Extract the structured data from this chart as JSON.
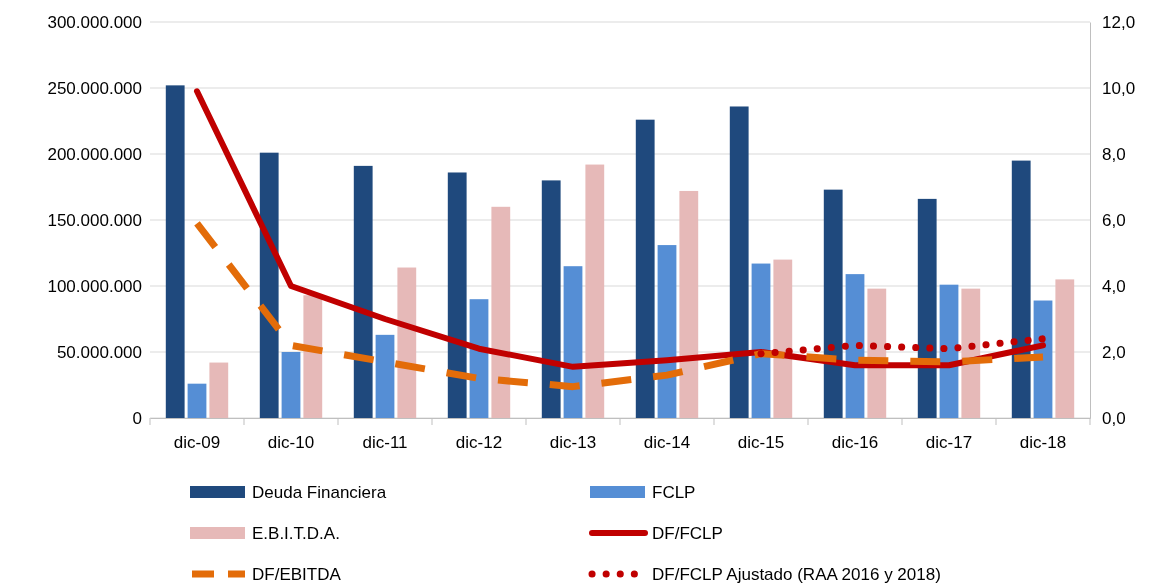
{
  "chart_data": {
    "type": "bar",
    "categories": [
      "dic-09",
      "dic-10",
      "dic-11",
      "dic-12",
      "dic-13",
      "dic-14",
      "dic-15",
      "dic-16",
      "dic-17",
      "dic-18"
    ],
    "series": [
      {
        "name": "Deuda Financiera",
        "color": "#1f497d",
        "values": [
          252000000,
          201000000,
          191000000,
          186000000,
          180000000,
          226000000,
          236000000,
          173000000,
          166000000,
          195000000
        ]
      },
      {
        "name": "FCLP",
        "color": "#558ed5",
        "values": [
          26000000,
          50000000,
          63000000,
          90000000,
          115000000,
          131000000,
          117000000,
          109000000,
          101000000,
          89000000
        ]
      },
      {
        "name": "E.B.I.T.D.A.",
        "color": "#e6b9b8",
        "values": [
          42000000,
          93000000,
          114000000,
          160000000,
          192000000,
          172000000,
          120000000,
          98000000,
          98000000,
          105000000
        ]
      },
      {
        "name": "DF/FCLP",
        "type": "line",
        "axis": "y2",
        "color": "#c00000",
        "line_style": "solid",
        "values": [
          9.9,
          4.0,
          3.0,
          2.1,
          1.55,
          1.75,
          2.0,
          1.6,
          1.6,
          2.2
        ]
      },
      {
        "name": "DF/EBITDA",
        "type": "line",
        "axis": "y2",
        "color": "#e36c09",
        "line_style": "dashed",
        "values": [
          5.9,
          2.2,
          1.7,
          1.2,
          0.95,
          1.3,
          1.95,
          1.75,
          1.7,
          1.85
        ]
      },
      {
        "name": "DF/FCLP Ajustado (RAA 2016 y 2018)",
        "type": "line",
        "axis": "y2",
        "color": "#c00000",
        "line_style": "dotted",
        "values": [
          null,
          null,
          null,
          null,
          null,
          null,
          1.95,
          2.2,
          2.1,
          2.4
        ]
      }
    ],
    "ylim": [
      0,
      300000000
    ],
    "yticks": [
      {
        "value": 0,
        "label": "0"
      },
      {
        "value": 50000000,
        "label": "50.000.000"
      },
      {
        "value": 100000000,
        "label": "100.000.000"
      },
      {
        "value": 150000000,
        "label": "150.000.000"
      },
      {
        "value": 200000000,
        "label": "200.000.000"
      },
      {
        "value": 250000000,
        "label": "250.000.000"
      },
      {
        "value": 300000000,
        "label": "300.000.000"
      }
    ],
    "y2lim": [
      0,
      12
    ],
    "y2ticks": [
      {
        "value": 0,
        "label": "0,0"
      },
      {
        "value": 2,
        "label": "2,0"
      },
      {
        "value": 4,
        "label": "4,0"
      },
      {
        "value": 6,
        "label": "6,0"
      },
      {
        "value": 8,
        "label": "8,0"
      },
      {
        "value": 10,
        "label": "10,0"
      },
      {
        "value": 12,
        "label": "12,0"
      }
    ],
    "grid": "y",
    "legend": "bottom",
    "marker": "none"
  }
}
